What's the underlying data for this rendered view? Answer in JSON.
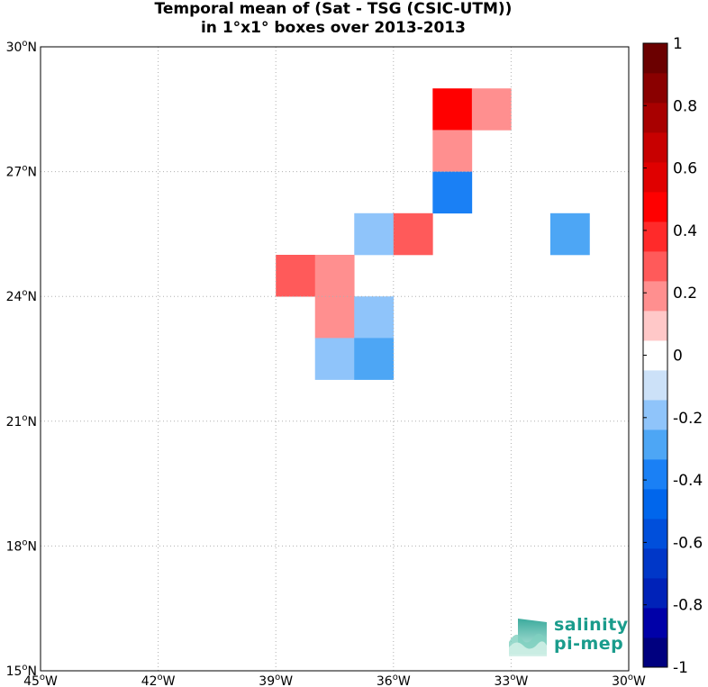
{
  "title": {
    "line1": "Temporal mean of (Sat - TSG (CSIC-UTM))",
    "line2": "in 1°x1° boxes over 2013-2013"
  },
  "map": {
    "lon_range": [
      -45,
      -30
    ],
    "lat_range": [
      15,
      30
    ],
    "grid": "dotted",
    "lon_ticks": [
      {
        "value": -45,
        "deg": "45",
        "hemi": "W"
      },
      {
        "value": -42,
        "deg": "42",
        "hemi": "W"
      },
      {
        "value": -39,
        "deg": "39",
        "hemi": "W"
      },
      {
        "value": -36,
        "deg": "36",
        "hemi": "W"
      },
      {
        "value": -33,
        "deg": "33",
        "hemi": "W"
      },
      {
        "value": -30,
        "deg": "30",
        "hemi": "W"
      }
    ],
    "lat_ticks": [
      {
        "value": 30,
        "deg": "30",
        "hemi": "N"
      },
      {
        "value": 27,
        "deg": "27",
        "hemi": "N"
      },
      {
        "value": 24,
        "deg": "24",
        "hemi": "N"
      },
      {
        "value": 21,
        "deg": "21",
        "hemi": "N"
      },
      {
        "value": 18,
        "deg": "18",
        "hemi": "N"
      },
      {
        "value": 15,
        "deg": "15",
        "hemi": "N"
      }
    ]
  },
  "chart_data": {
    "type": "heatmap",
    "value_range": [
      -1,
      1
    ],
    "cells": [
      {
        "lon": -35,
        "lat": 28,
        "value": 0.45
      },
      {
        "lon": -34,
        "lat": 28,
        "value": 0.15
      },
      {
        "lon": -35,
        "lat": 27,
        "value": 0.15
      },
      {
        "lon": -35,
        "lat": 26,
        "value": -0.35
      },
      {
        "lon": -37,
        "lat": 25,
        "value": -0.15
      },
      {
        "lon": -36,
        "lat": 25,
        "value": 0.25
      },
      {
        "lon": -32,
        "lat": 25,
        "value": -0.25
      },
      {
        "lon": -39,
        "lat": 24,
        "value": 0.25
      },
      {
        "lon": -38,
        "lat": 24,
        "value": 0.15
      },
      {
        "lon": -38,
        "lat": 23,
        "value": 0.15
      },
      {
        "lon": -37,
        "lat": 23,
        "value": -0.15
      },
      {
        "lon": -38,
        "lat": 22,
        "value": -0.15
      },
      {
        "lon": -37,
        "lat": 22,
        "value": -0.25
      }
    ]
  },
  "colorbar": {
    "colors": [
      "#00007f",
      "#0000a8",
      "#0022b8",
      "#0037c8",
      "#004fdb",
      "#0066ec",
      "#1a80f5",
      "#4da6f5",
      "#8fc4fa",
      "#cce1f8",
      "#ffffff",
      "#ffc8c8",
      "#ff8f8f",
      "#ff5a5a",
      "#ff2a2a",
      "#ff0000",
      "#e00000",
      "#c80000",
      "#a80000",
      "#8a0000",
      "#6b0000"
    ],
    "labels": [
      "1",
      "0.8",
      "0.6",
      "0.4",
      "0.2",
      "0",
      "-0.2",
      "-0.4",
      "-0.6",
      "-0.8",
      "-1"
    ]
  },
  "logo": {
    "line1": "salinity",
    "line2": "pi-mep"
  }
}
